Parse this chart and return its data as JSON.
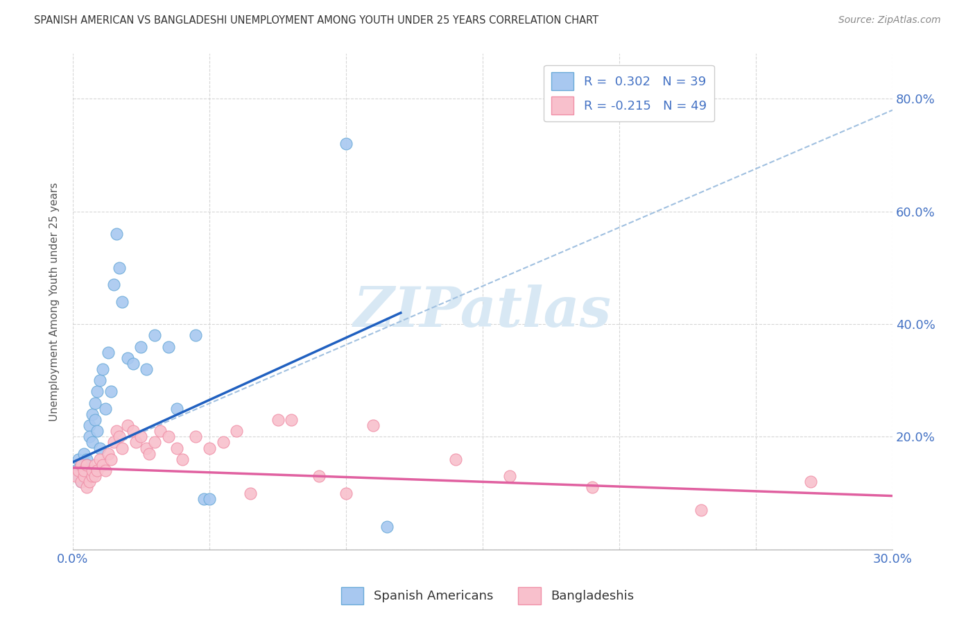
{
  "title": "SPANISH AMERICAN VS BANGLADESHI UNEMPLOYMENT AMONG YOUTH UNDER 25 YEARS CORRELATION CHART",
  "source": "Source: ZipAtlas.com",
  "ylabel": "Unemployment Among Youth under 25 years",
  "xlim": [
    0.0,
    0.3
  ],
  "ylim": [
    0.0,
    0.88
  ],
  "xticks": [
    0.0,
    0.05,
    0.1,
    0.15,
    0.2,
    0.25,
    0.3
  ],
  "yticks": [
    0.0,
    0.2,
    0.4,
    0.6,
    0.8
  ],
  "ytick_labels": [
    "",
    "20.0%",
    "40.0%",
    "60.0%",
    "80.0%"
  ],
  "legend_r_blue": "R =  0.302",
  "legend_n_blue": "N = 39",
  "legend_r_pink": "R = -0.215",
  "legend_n_pink": "N = 49",
  "blue_fill": "#A8C8F0",
  "blue_edge": "#6AAAD8",
  "pink_fill": "#F8C0CC",
  "pink_edge": "#F090A8",
  "trend_blue_color": "#2060C0",
  "trend_pink_color": "#E060A0",
  "dashed_color": "#A0C0E0",
  "watermark_color": "#D8E8F4",
  "blue_scatter_x": [
    0.001,
    0.002,
    0.002,
    0.003,
    0.003,
    0.004,
    0.004,
    0.005,
    0.005,
    0.006,
    0.006,
    0.007,
    0.007,
    0.008,
    0.008,
    0.009,
    0.009,
    0.01,
    0.01,
    0.011,
    0.012,
    0.013,
    0.014,
    0.015,
    0.016,
    0.017,
    0.018,
    0.02,
    0.022,
    0.025,
    0.027,
    0.03,
    0.035,
    0.038,
    0.045,
    0.048,
    0.05,
    0.1,
    0.115
  ],
  "blue_scatter_y": [
    0.14,
    0.16,
    0.13,
    0.15,
    0.12,
    0.17,
    0.14,
    0.16,
    0.15,
    0.22,
    0.2,
    0.24,
    0.19,
    0.26,
    0.23,
    0.28,
    0.21,
    0.3,
    0.18,
    0.32,
    0.25,
    0.35,
    0.28,
    0.47,
    0.56,
    0.5,
    0.44,
    0.34,
    0.33,
    0.36,
    0.32,
    0.38,
    0.36,
    0.25,
    0.38,
    0.09,
    0.09,
    0.72,
    0.04
  ],
  "pink_scatter_x": [
    0.001,
    0.002,
    0.003,
    0.003,
    0.004,
    0.004,
    0.005,
    0.005,
    0.006,
    0.007,
    0.007,
    0.008,
    0.008,
    0.009,
    0.01,
    0.011,
    0.012,
    0.013,
    0.014,
    0.015,
    0.016,
    0.017,
    0.018,
    0.02,
    0.022,
    0.023,
    0.025,
    0.027,
    0.028,
    0.03,
    0.032,
    0.035,
    0.038,
    0.04,
    0.045,
    0.05,
    0.055,
    0.06,
    0.065,
    0.075,
    0.08,
    0.09,
    0.1,
    0.11,
    0.14,
    0.16,
    0.19,
    0.23,
    0.27
  ],
  "pink_scatter_y": [
    0.13,
    0.14,
    0.12,
    0.15,
    0.13,
    0.14,
    0.11,
    0.15,
    0.12,
    0.13,
    0.14,
    0.13,
    0.15,
    0.14,
    0.16,
    0.15,
    0.14,
    0.17,
    0.16,
    0.19,
    0.21,
    0.2,
    0.18,
    0.22,
    0.21,
    0.19,
    0.2,
    0.18,
    0.17,
    0.19,
    0.21,
    0.2,
    0.18,
    0.16,
    0.2,
    0.18,
    0.19,
    0.21,
    0.1,
    0.23,
    0.23,
    0.13,
    0.1,
    0.22,
    0.16,
    0.13,
    0.11,
    0.07,
    0.12
  ],
  "blue_trendline_x": [
    0.0,
    0.12
  ],
  "blue_trendline_y": [
    0.155,
    0.42
  ],
  "pink_trendline_x": [
    0.0,
    0.3
  ],
  "pink_trendline_y": [
    0.145,
    0.095
  ],
  "dashed_line_x": [
    0.0,
    0.3
  ],
  "dashed_line_y": [
    0.155,
    0.78
  ]
}
